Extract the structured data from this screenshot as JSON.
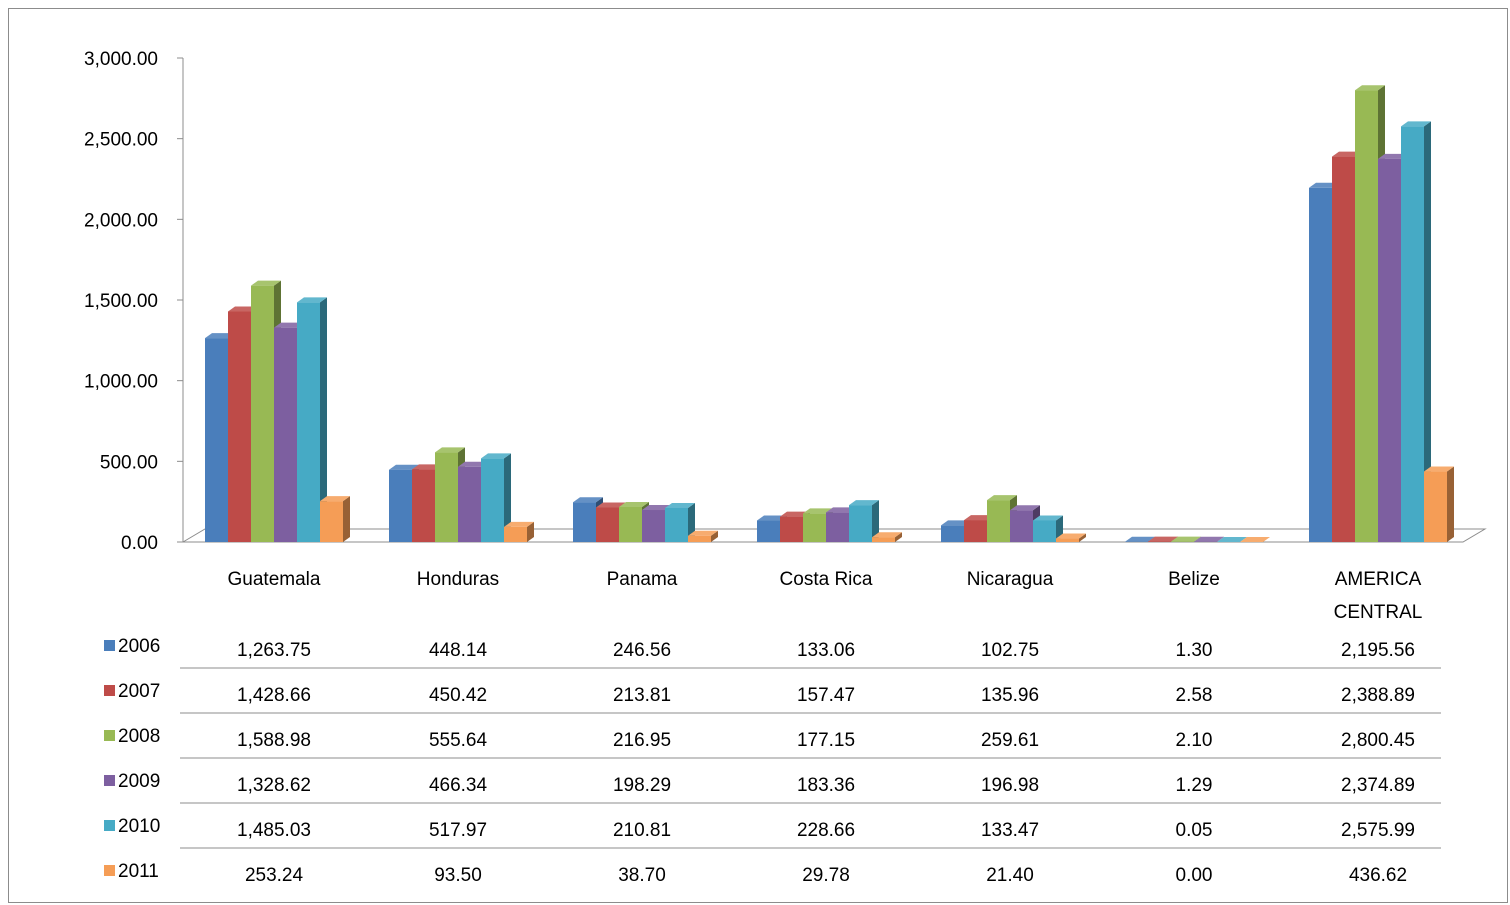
{
  "chart_data": {
    "type": "bar",
    "title": "",
    "xlabel": "",
    "ylabel": "",
    "ylim": [
      0,
      3000
    ],
    "y_ticks": [
      "0.00",
      "500.00",
      "1,000.00",
      "1,500.00",
      "2,000.00",
      "2,500.00",
      "3,000.00"
    ],
    "grid": false,
    "three_d": true,
    "legend": "data-table",
    "categories": [
      "Guatemala",
      "Honduras",
      "Panama",
      "Costa Rica",
      "Nicaragua",
      "Belize",
      "AMERICA CENTRAL"
    ],
    "series": [
      {
        "name": "2006",
        "color": "#4a7ebb",
        "values": [
          1263.75,
          448.14,
          246.56,
          133.06,
          102.75,
          1.3,
          2195.56
        ],
        "labels": [
          "1,263.75",
          "448.14",
          "246.56",
          "133.06",
          "102.75",
          "1.30",
          "2,195.56"
        ]
      },
      {
        "name": "2007",
        "color": "#be4b48",
        "values": [
          1428.66,
          450.42,
          213.81,
          157.47,
          135.96,
          2.58,
          2388.89
        ],
        "labels": [
          "1,428.66",
          "450.42",
          "213.81",
          "157.47",
          "135.96",
          "2.58",
          "2,388.89"
        ]
      },
      {
        "name": "2008",
        "color": "#98b954",
        "values": [
          1588.98,
          555.64,
          216.95,
          177.15,
          259.61,
          2.1,
          2800.45
        ],
        "labels": [
          "1,588.98",
          "555.64",
          "216.95",
          "177.15",
          "259.61",
          "2.10",
          "2,800.45"
        ]
      },
      {
        "name": "2009",
        "color": "#7d5fa0",
        "values": [
          1328.62,
          466.34,
          198.29,
          183.36,
          196.98,
          1.29,
          2374.89
        ],
        "labels": [
          "1,328.62",
          "466.34",
          "198.29",
          "183.36",
          "196.98",
          "1.29",
          "2,374.89"
        ]
      },
      {
        "name": "2010",
        "color": "#46aac5",
        "values": [
          1485.03,
          517.97,
          210.81,
          228.66,
          133.47,
          0.05,
          2575.99
        ],
        "labels": [
          "1,485.03",
          "517.97",
          "210.81",
          "228.66",
          "133.47",
          "0.05",
          "2,575.99"
        ]
      },
      {
        "name": "2011",
        "color": "#f59d56",
        "values": [
          253.24,
          93.5,
          38.7,
          29.78,
          21.4,
          0.0,
          436.62
        ],
        "labels": [
          "253.24",
          "93.50",
          "38.70",
          "29.78",
          "21.40",
          "0.00",
          "436.62"
        ]
      }
    ]
  }
}
